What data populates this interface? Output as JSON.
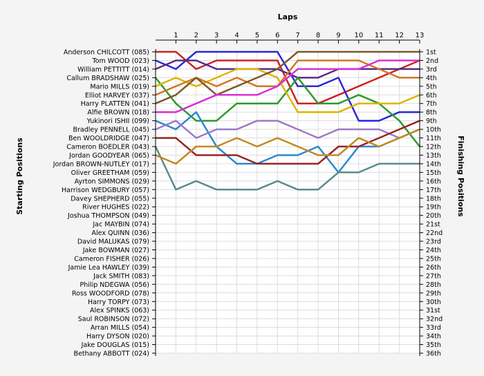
{
  "chart_data": {
    "type": "line",
    "title": "Laps",
    "ylabel_left": "Starting Positions",
    "ylabel_right": "Finishing Positions",
    "x": [
      1,
      2,
      3,
      4,
      5,
      6,
      7,
      8,
      9,
      10,
      11,
      12,
      13
    ],
    "xlim": [
      0,
      13
    ],
    "ylim": [
      1,
      36
    ],
    "grid": "on",
    "drivers": [
      "Anderson CHILCOTT (085)",
      "Tom WOOD (023)",
      "William PETTITT (014)",
      "Callum BRADSHAW (025)",
      "Mario MILLS (019)",
      "Elliot HARVEY (037)",
      "Harry PLATTEN (041)",
      "Alfie BROWN (018)",
      "Yukinori ISHII (099)",
      "Bradley PENNELL (045)",
      "Ben WOOLDRIDGE (047)",
      "Cameron BOEDLER (043)",
      "Jordan GOODYEAR (065)",
      "Jordan BROWN-NUTLEY (017)",
      "Oliver GREETHAM (059)",
      "Ayrton SIMMONS (029)",
      "Harrison WEDGBURY (057)",
      "Davey SHEPHERD (055)",
      "River HUGHES (022)",
      "Joshua THOMPSON (049)",
      "Jac MAYBIN (074)",
      "Alex QUINN (036)",
      "David MALUKAS (079)",
      "Jake BOWMAN (027)",
      "Cameron FISHER (026)",
      "Jamie Lea HAWLEY (039)",
      "Jack SMITH (083)",
      "Philip NDEGWA (056)",
      "Ross WOODFORD (078)",
      "Harry TORPY (073)",
      "Alex SPINKS (063)",
      "Saul ROBINSON (072)",
      "Arran MILLS (054)",
      "Harry DYSON (020)",
      "Jake DOUGLAS (015)",
      "Bethany ABBOTT (024)"
    ],
    "finishing_labels": [
      "1st",
      "2nd",
      "3rd",
      "4th",
      "5th",
      "6th",
      "7th",
      "8th",
      "9th",
      "10th",
      "11th",
      "12th",
      "13th",
      "14th",
      "15th",
      "16th",
      "17th",
      "18th",
      "19th",
      "20th",
      "21st",
      "22nd",
      "23rd",
      "24th",
      "25th",
      "26th",
      "27th",
      "28th",
      "29th",
      "30th",
      "31st",
      "32nd",
      "33rd",
      "34th",
      "35th",
      "36th"
    ],
    "series": [
      {
        "start": 1,
        "color": "#cc2222",
        "values": [
          1,
          3,
          2,
          2,
          2,
          2,
          7,
          7,
          6,
          5,
          4,
          3,
          2
        ]
      },
      {
        "start": 2,
        "color": "#2a2ad6",
        "values": [
          3,
          1,
          1,
          1,
          1,
          1,
          5,
          5,
          4,
          9,
          9,
          8,
          8
        ]
      },
      {
        "start": 3,
        "color": "#5a2a82",
        "values": [
          2,
          2,
          3,
          3,
          3,
          3,
          4,
          4,
          3,
          3,
          3,
          3,
          3
        ]
      },
      {
        "start": 4,
        "color": "#2d9a2d",
        "values": [
          7,
          9,
          9,
          7,
          7,
          7,
          4,
          7,
          7,
          6,
          7,
          9,
          12
        ]
      },
      {
        "start": 5,
        "color": "#e0b400",
        "values": [
          4,
          5,
          4,
          3,
          3,
          4,
          8,
          8,
          8,
          7,
          7,
          7,
          6
        ]
      },
      {
        "start": 6,
        "color": "#d07820",
        "values": [
          5,
          4,
          5,
          4,
          5,
          5,
          2,
          2,
          2,
          2,
          3,
          4,
          4
        ]
      },
      {
        "start": 7,
        "color": "#7a5a2a",
        "values": [
          6,
          4,
          6,
          5,
          4,
          3,
          1,
          1,
          1,
          1,
          1,
          1,
          1
        ]
      },
      {
        "start": 8,
        "color": "#d82fd8",
        "values": [
          8,
          7,
          6,
          6,
          6,
          5,
          3,
          3,
          3,
          3,
          2,
          2,
          2
        ]
      },
      {
        "start": 9,
        "color": "#2a88d0",
        "values": [
          10,
          8,
          12,
          14,
          14,
          13,
          13,
          12,
          15,
          12,
          12,
          11,
          10
        ]
      },
      {
        "start": 10,
        "color": "#9c7ac8",
        "values": [
          9,
          11,
          10,
          10,
          9,
          9,
          10,
          11,
          10,
          10,
          10,
          11,
          10
        ]
      },
      {
        "start": 11,
        "color": "#9a2222",
        "values": [
          11,
          13,
          13,
          13,
          14,
          14,
          14,
          14,
          12,
          12,
          11,
          10,
          9
        ]
      },
      {
        "start": 12,
        "color": "#5a8a8a",
        "values": [
          17,
          16,
          17,
          17,
          17,
          16,
          17,
          17,
          15,
          15,
          14,
          14,
          14
        ]
      },
      {
        "start": 13,
        "color": "#c08a20",
        "values": [
          14,
          12,
          12,
          11,
          12,
          11,
          12,
          13,
          13,
          11,
          12,
          11,
          10
        ]
      }
    ]
  }
}
